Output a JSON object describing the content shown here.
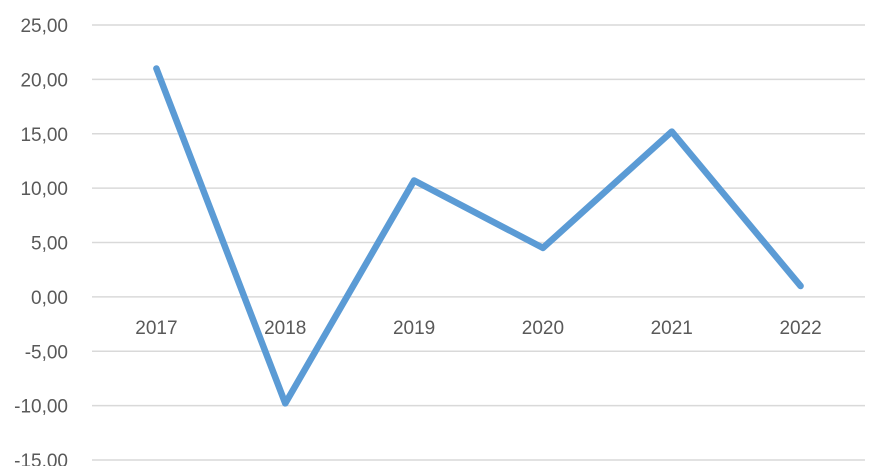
{
  "chart_data": {
    "type": "line",
    "title": "",
    "xlabel": "",
    "ylabel": "",
    "categories": [
      "2017",
      "2018",
      "2019",
      "2020",
      "2021",
      "2022"
    ],
    "series": [
      {
        "values": [
          21.0,
          -9.8,
          10.7,
          4.5,
          15.2,
          1.0
        ],
        "color": "#5b9bd5"
      }
    ],
    "ylim": [
      -15,
      25
    ],
    "yticks": [
      25,
      20,
      15,
      10,
      5,
      0,
      -5,
      -10,
      -15
    ],
    "ytick_labels": [
      "25,00",
      "20,00",
      "15,00",
      "10,00",
      "5,00",
      "0,00",
      "-5,00",
      "-10,00",
      "-15,00"
    ],
    "grid": true,
    "legend": "none"
  }
}
